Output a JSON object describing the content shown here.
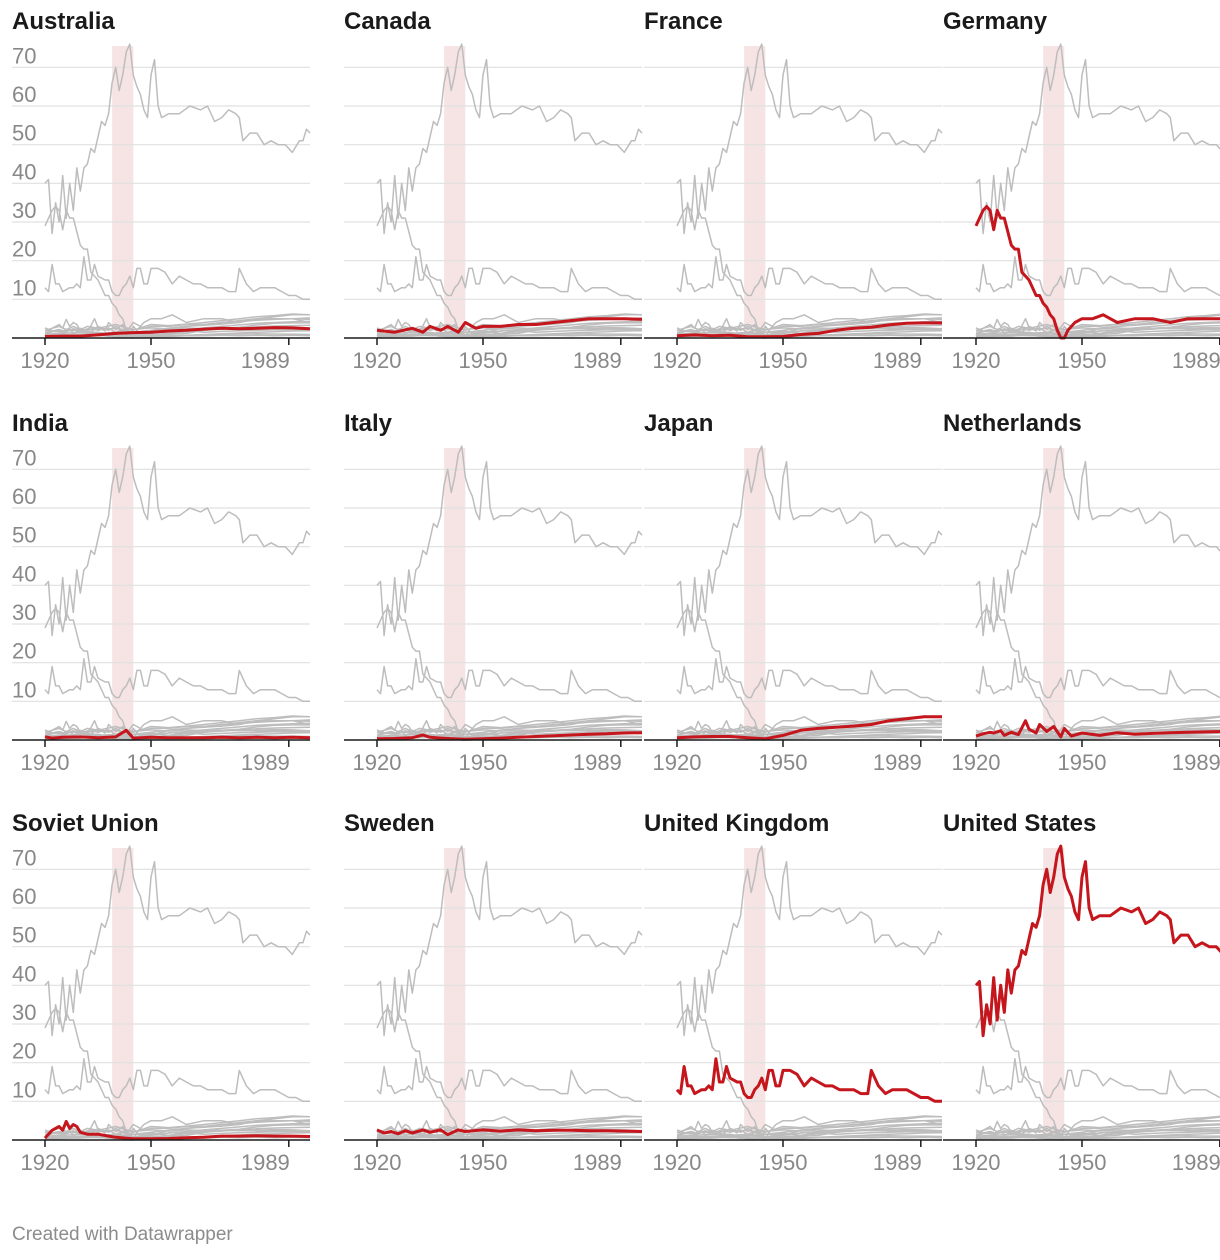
{
  "footer": "Created with Datawrapper",
  "chart_data": {
    "type": "line",
    "layout": "small-multiples",
    "panels": [
      "Australia",
      "Canada",
      "France",
      "Germany",
      "India",
      "Italy",
      "Japan",
      "Netherlands",
      "Soviet Union",
      "Sweden",
      "United Kingdom",
      "United States"
    ],
    "x_ticks": [
      "1920",
      "1950",
      "1989"
    ],
    "y_ticks": [
      "10",
      "20",
      "30",
      "40",
      "50",
      "60",
      "70"
    ],
    "xlim": [
      1920,
      1995
    ],
    "ylim": [
      0,
      75
    ],
    "grid": true,
    "highlight_band": [
      1939,
      1945
    ],
    "colors": {
      "highlight": "#c4161c",
      "context": "#bdbdbd",
      "band": "#f6e4e4",
      "grid": "#e0e0e0",
      "axis": "#1a1a1a",
      "tick_text": "#888888"
    },
    "series": [
      {
        "name": "United States",
        "x": [
          1920,
          1921,
          1922,
          1923,
          1924,
          1925,
          1926,
          1927,
          1928,
          1929,
          1930,
          1931,
          1932,
          1933,
          1934,
          1935,
          1936,
          1937,
          1938,
          1939,
          1940,
          1941,
          1942,
          1943,
          1944,
          1945,
          1946,
          1947,
          1948,
          1949,
          1950,
          1951,
          1952,
          1953,
          1955,
          1958,
          1961,
          1964,
          1966,
          1968,
          1970,
          1972,
          1974,
          1975,
          1976,
          1978,
          1980,
          1982,
          1984,
          1986,
          1988,
          1990,
          1992,
          1993,
          1994,
          1995
        ],
        "values": [
          40,
          41,
          27,
          35,
          30,
          42,
          31,
          40,
          33,
          44,
          38,
          44,
          45,
          49,
          48,
          52,
          56,
          55,
          58,
          66,
          70,
          64,
          68,
          74,
          76,
          68,
          65,
          63,
          59,
          57,
          68,
          72,
          60,
          57,
          58,
          58,
          60,
          59,
          60,
          56,
          57,
          59,
          58,
          57,
          51,
          53,
          53,
          50,
          51,
          50,
          50,
          48,
          51,
          51,
          54,
          53
        ]
      },
      {
        "name": "Germany",
        "x": [
          1920,
          1922,
          1923,
          1924,
          1925,
          1926,
          1927,
          1928,
          1930,
          1931,
          1932,
          1933,
          1934,
          1935,
          1937,
          1938,
          1939,
          1940,
          1941,
          1942,
          1943,
          1944,
          1945,
          1946,
          1947,
          1948,
          1950,
          1953,
          1956,
          1960,
          1965,
          1970,
          1975,
          1980,
          1985,
          1990,
          1995
        ],
        "values": [
          29,
          33,
          34,
          33,
          28,
          33,
          31,
          31,
          24,
          23,
          23,
          17,
          16,
          15,
          11,
          11,
          9,
          8,
          6,
          5,
          2,
          0,
          0,
          2,
          3,
          4,
          5,
          5,
          6,
          4,
          5,
          5,
          4,
          5,
          5,
          5,
          4
        ]
      },
      {
        "name": "United Kingdom",
        "x": [
          1920,
          1921,
          1922,
          1923,
          1924,
          1925,
          1927,
          1928,
          1929,
          1930,
          1931,
          1932,
          1933,
          1934,
          1935,
          1937,
          1938,
          1939,
          1940,
          1941,
          1942,
          1943,
          1944,
          1945,
          1946,
          1947,
          1948,
          1949,
          1950,
          1952,
          1954,
          1956,
          1958,
          1960,
          1962,
          1964,
          1966,
          1968,
          1970,
          1972,
          1974,
          1975,
          1977,
          1979,
          1981,
          1983,
          1985,
          1987,
          1989,
          1991,
          1993,
          1995
        ],
        "values": [
          13,
          12,
          19,
          14,
          14,
          12,
          13,
          13,
          14,
          13,
          21,
          15,
          15,
          19,
          16,
          15,
          15,
          12,
          11,
          11,
          13,
          14,
          16,
          13,
          18,
          18,
          14,
          14,
          18,
          18,
          17,
          14,
          16,
          15,
          14,
          14,
          13,
          13,
          13,
          12,
          12,
          18,
          14,
          12,
          13,
          13,
          13,
          12,
          11,
          11,
          10,
          10
        ]
      },
      {
        "name": "Australia",
        "x": [
          1920,
          1925,
          1930,
          1935,
          1940,
          1945,
          1950,
          1955,
          1960,
          1965,
          1970,
          1975,
          1980,
          1985,
          1990,
          1995
        ],
        "values": [
          0.4,
          0.5,
          0.5,
          0.8,
          1.2,
          1.4,
          1.5,
          1.8,
          2.0,
          2.3,
          2.5,
          2.4,
          2.5,
          2.7,
          2.6,
          2.4
        ]
      },
      {
        "name": "Canada",
        "x": [
          1920,
          1925,
          1930,
          1933,
          1935,
          1938,
          1940,
          1943,
          1945,
          1948,
          1950,
          1955,
          1960,
          1965,
          1970,
          1975,
          1980,
          1985,
          1990,
          1995
        ],
        "values": [
          2.0,
          1.5,
          2.5,
          1.5,
          3.0,
          2.0,
          3.0,
          1.5,
          4.0,
          2.5,
          3.0,
          3.0,
          3.5,
          3.5,
          4.0,
          4.5,
          5.0,
          5.0,
          5.0,
          4.8
        ]
      },
      {
        "name": "France",
        "x": [
          1920,
          1925,
          1930,
          1935,
          1940,
          1945,
          1950,
          1955,
          1960,
          1965,
          1970,
          1975,
          1980,
          1985,
          1990,
          1995
        ],
        "values": [
          0.6,
          0.8,
          0.6,
          0.7,
          0.3,
          0.3,
          0.4,
          0.9,
          1.2,
          2.0,
          2.5,
          2.8,
          3.4,
          3.8,
          3.9,
          3.9
        ]
      },
      {
        "name": "India",
        "x": [
          1920,
          1922,
          1925,
          1930,
          1935,
          1940,
          1943,
          1945,
          1950,
          1955,
          1960,
          1965,
          1970,
          1975,
          1980,
          1985,
          1990,
          1995
        ],
        "values": [
          0.8,
          0.5,
          0.7,
          0.8,
          0.6,
          0.8,
          2.5,
          0.5,
          0.7,
          0.6,
          0.6,
          0.6,
          0.7,
          0.6,
          0.7,
          0.6,
          0.7,
          0.6
        ]
      },
      {
        "name": "Italy",
        "x": [
          1920,
          1925,
          1930,
          1933,
          1935,
          1938,
          1940,
          1945,
          1950,
          1955,
          1960,
          1965,
          1970,
          1975,
          1980,
          1985,
          1990,
          1995
        ],
        "values": [
          0.3,
          0.4,
          0.6,
          1.3,
          0.7,
          0.5,
          0.4,
          0.2,
          0.3,
          0.5,
          0.7,
          0.9,
          1.1,
          1.3,
          1.5,
          1.6,
          1.8,
          1.9
        ]
      },
      {
        "name": "Japan",
        "x": [
          1920,
          1925,
          1930,
          1935,
          1940,
          1945,
          1950,
          1955,
          1960,
          1965,
          1970,
          1975,
          1980,
          1985,
          1990,
          1995
        ],
        "values": [
          0.6,
          0.8,
          0.9,
          0.9,
          0.6,
          0.3,
          1.2,
          2.5,
          3.0,
          3.3,
          3.6,
          4.0,
          5.0,
          5.5,
          6.0,
          6.0
        ]
      },
      {
        "name": "Netherlands",
        "x": [
          1920,
          1922,
          1924,
          1925,
          1927,
          1928,
          1930,
          1932,
          1934,
          1935,
          1937,
          1938,
          1940,
          1942,
          1944,
          1945,
          1947,
          1950,
          1955,
          1960,
          1965,
          1970,
          1975,
          1980,
          1985,
          1990,
          1995
        ],
        "values": [
          1.0,
          1.6,
          2.0,
          1.8,
          2.4,
          1.2,
          2.0,
          1.4,
          5.0,
          2.8,
          1.8,
          4.0,
          2.2,
          3.5,
          0.8,
          3.0,
          1.0,
          1.8,
          1.2,
          1.9,
          1.5,
          1.7,
          1.9,
          2.0,
          2.1,
          2.2,
          2.1
        ]
      },
      {
        "name": "Soviet Union",
        "x": [
          1920,
          1922,
          1924,
          1925,
          1926,
          1927,
          1928,
          1929,
          1930,
          1932,
          1935,
          1938,
          1940,
          1945,
          1950,
          1955,
          1960,
          1965,
          1970,
          1975,
          1980,
          1985,
          1990,
          1995
        ],
        "values": [
          0.5,
          2.5,
          3.5,
          2.5,
          4.8,
          3.0,
          4.0,
          3.5,
          2.0,
          1.5,
          1.5,
          1.0,
          0.7,
          0.3,
          0.3,
          0.4,
          0.6,
          0.7,
          1.0,
          1.0,
          1.1,
          1.0,
          1.0,
          0.9
        ]
      },
      {
        "name": "Sweden",
        "x": [
          1920,
          1922,
          1924,
          1926,
          1928,
          1930,
          1933,
          1935,
          1938,
          1940,
          1943,
          1945,
          1950,
          1955,
          1960,
          1965,
          1970,
          1975,
          1980,
          1985,
          1990,
          1995
        ],
        "values": [
          2.6,
          1.8,
          2.2,
          1.6,
          2.4,
          1.8,
          2.6,
          2.0,
          2.6,
          1.4,
          2.6,
          2.2,
          2.6,
          2.3,
          2.6,
          2.4,
          2.5,
          2.5,
          2.4,
          2.4,
          2.3,
          2.2
        ]
      }
    ],
    "context_series": [
      {
        "x": [
          1920,
          1922,
          1924,
          1926,
          1928,
          1930,
          1932,
          1935,
          1940,
          1945,
          1950,
          1955,
          1960,
          1965,
          1970,
          1975,
          1980,
          1985,
          1990,
          1995
        ],
        "values": [
          2.0,
          2.5,
          3.0,
          2.2,
          3.0,
          2.2,
          3.0,
          2.5,
          3.5,
          2.0,
          3.5,
          3.2,
          3.6,
          4.0,
          4.5,
          5.0,
          5.5,
          5.8,
          6.2,
          6.0
        ]
      },
      {
        "x": [
          1920,
          1925,
          1930,
          1935,
          1940,
          1945,
          1950,
          1955,
          1960,
          1965,
          1970,
          1975,
          1980,
          1985,
          1990,
          1995
        ],
        "values": [
          1.5,
          1.8,
          2.0,
          2.2,
          2.5,
          1.5,
          2.0,
          2.5,
          3.0,
          3.5,
          4.0,
          4.2,
          4.6,
          4.8,
          5.0,
          5.2
        ]
      },
      {
        "x": [
          1920,
          1925,
          1930,
          1935,
          1940,
          1945,
          1950,
          1955,
          1960,
          1965,
          1970,
          1975,
          1980,
          1985,
          1990,
          1995
        ],
        "values": [
          1.0,
          1.2,
          1.5,
          1.2,
          1.5,
          0.8,
          1.2,
          1.8,
          2.2,
          2.6,
          3.0,
          3.4,
          3.8,
          4.0,
          4.2,
          4.3
        ]
      },
      {
        "x": [
          1920,
          1925,
          1930,
          1935,
          1940,
          1945,
          1950,
          1955,
          1960,
          1965,
          1970,
          1975,
          1980,
          1985,
          1990,
          1995
        ],
        "values": [
          0.5,
          0.8,
          1.0,
          1.0,
          1.2,
          0.6,
          0.8,
          1.2,
          1.6,
          2.0,
          2.3,
          2.6,
          2.9,
          3.1,
          3.2,
          3.3
        ]
      }
    ]
  }
}
